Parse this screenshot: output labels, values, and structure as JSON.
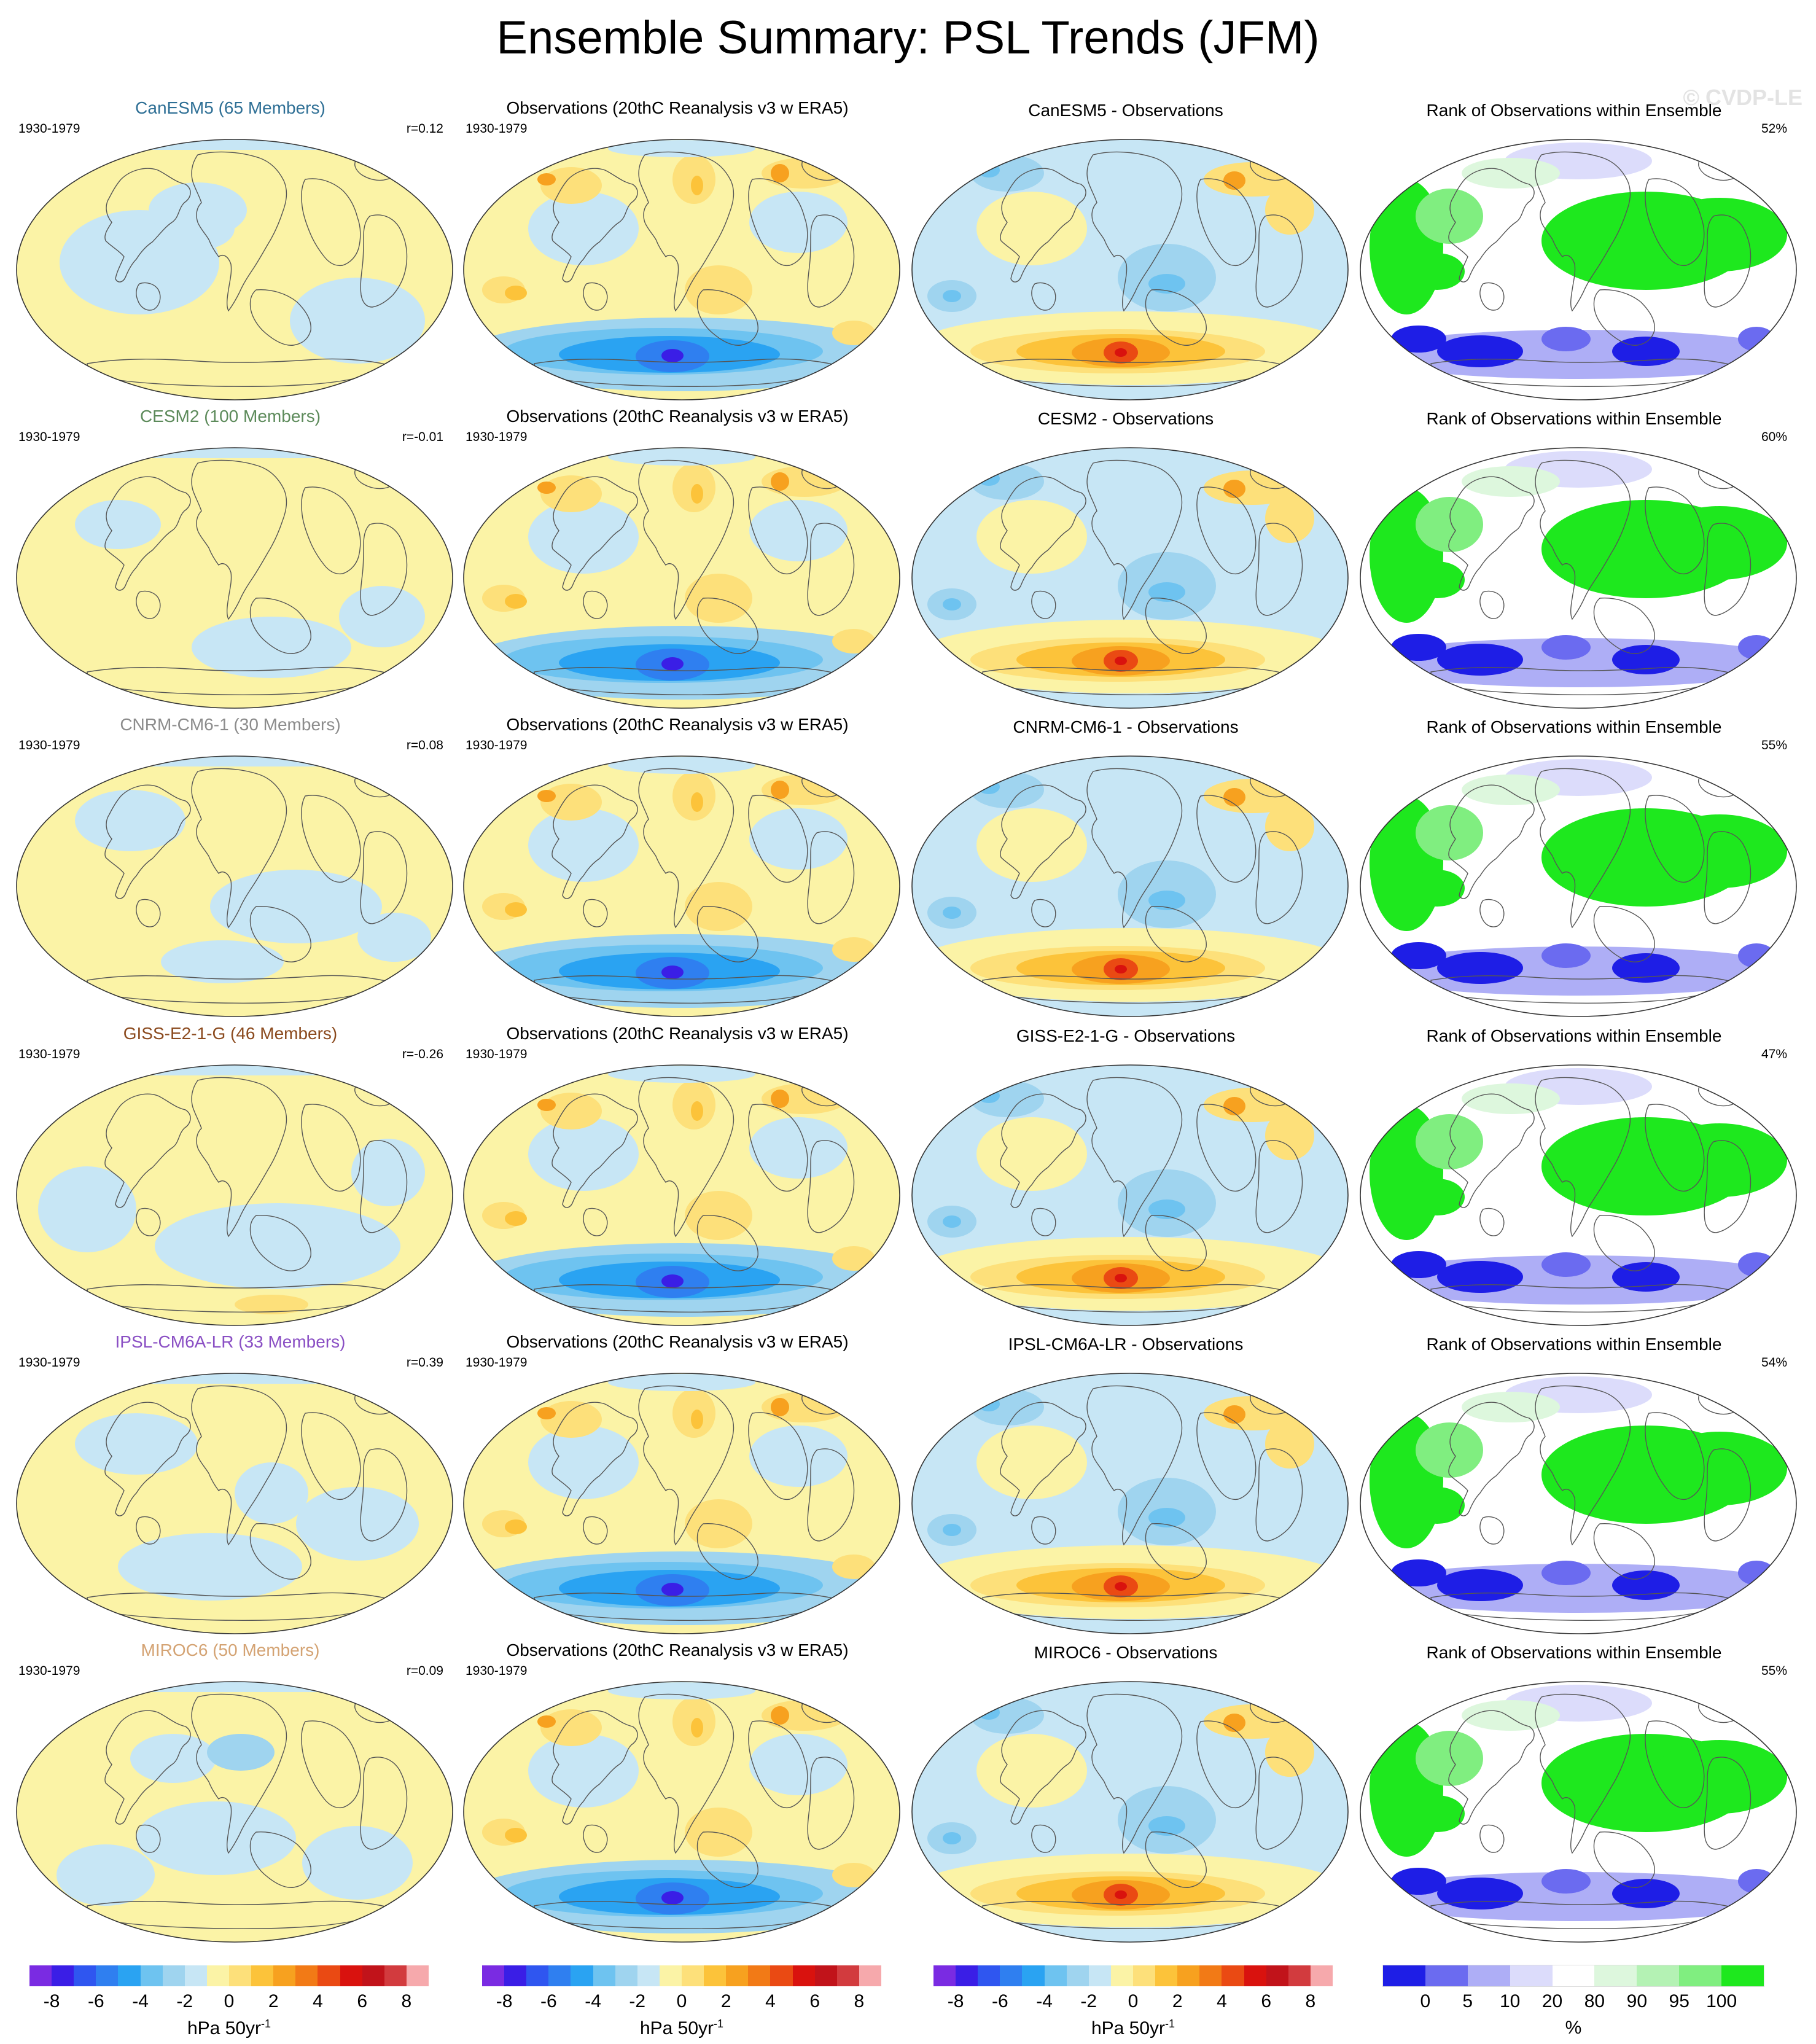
{
  "title": "Ensemble Summary: PSL Trends (JFM)",
  "watermark": "© CVDP-LE",
  "period": "1930-1979",
  "obs_title": "Observations (20thC Reanalysis v3 w ERA5)",
  "rank_title": "Rank of Observations within Ensemble",
  "rows": [
    {
      "model_title": "CanESM5 (65 Members)",
      "model_color": "#2e6f95",
      "r": "r=0.12",
      "diff_title": "CanESM5 - Observations",
      "rank_pct": "52%"
    },
    {
      "model_title": "CESM2 (100 Members)",
      "model_color": "#5c8a5a",
      "r": "r=-0.01",
      "diff_title": "CESM2 - Observations",
      "rank_pct": "60%"
    },
    {
      "model_title": "CNRM-CM6-1 (30 Members)",
      "model_color": "#8c8c8c",
      "r": "r=0.08",
      "diff_title": "CNRM-CM6-1 - Observations",
      "rank_pct": "55%"
    },
    {
      "model_title": "GISS-E2-1-G (46 Members)",
      "model_color": "#8b4a1e",
      "r": "r=-0.26",
      "diff_title": "GISS-E2-1-G - Observations",
      "rank_pct": "47%"
    },
    {
      "model_title": "IPSL-CM6A-LR (33 Members)",
      "model_color": "#8a4fc4",
      "r": "r=0.39",
      "diff_title": "IPSL-CM6A-LR - Observations",
      "rank_pct": "54%"
    },
    {
      "model_title": "MIROC6 (50 Members)",
      "model_color": "#d4a373",
      "r": "r=0.09",
      "diff_title": "MIROC6 - Observations",
      "rank_pct": "55%"
    }
  ],
  "trend_legend": {
    "colors": [
      "#7a2be2",
      "#3a1ee6",
      "#2f56f0",
      "#2f7ff0",
      "#2aa3f2",
      "#6ec3f0",
      "#9fd4ef",
      "#c7e6f5",
      "#fbf3a6",
      "#fde07a",
      "#fcc33a",
      "#f7a11f",
      "#f27a16",
      "#ea4a13",
      "#d9120e",
      "#c1131a",
      "#d23b3e",
      "#f6a9ac"
    ],
    "ticks": [
      "-8",
      "-6",
      "-4",
      "-2",
      "0",
      "2",
      "4",
      "6",
      "8"
    ],
    "unit": "hPa 50yr",
    "unit_sup": "-1"
  },
  "rank_legend": {
    "colors": [
      "#1e1ee6",
      "#6b6bf0",
      "#aeaef6",
      "#dcdcfb",
      "#ffffff",
      "#ddf7dd",
      "#b4f2b4",
      "#80ee80",
      "#1ee81e"
    ],
    "ticks": [
      "0",
      "5",
      "10",
      "20",
      "80",
      "90",
      "95",
      "100"
    ],
    "unit": "%"
  }
}
